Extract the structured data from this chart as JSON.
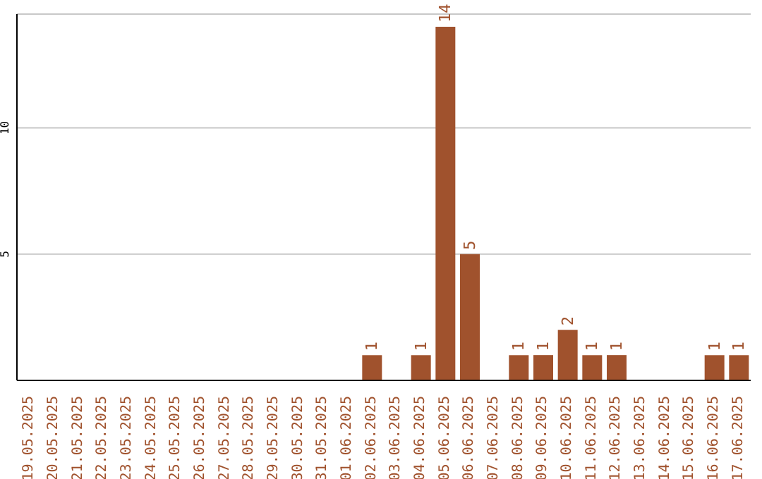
{
  "chart_data": {
    "type": "bar",
    "categories": [
      "19.05.2025",
      "20.05.2025",
      "21.05.2025",
      "22.05.2025",
      "23.05.2025",
      "24.05.2025",
      "25.05.2025",
      "26.05.2025",
      "27.05.2025",
      "28.05.2025",
      "29.05.2025",
      "30.05.2025",
      "31.05.2025",
      "01.06.2025",
      "02.06.2025",
      "03.06.2025",
      "04.06.2025",
      "05.06.2025",
      "06.06.2025",
      "07.06.2025",
      "08.06.2025",
      "09.06.2025",
      "10.06.2025",
      "11.06.2025",
      "12.06.2025",
      "13.06.2025",
      "14.06.2025",
      "15.06.2025",
      "16.06.2025",
      "17.06.2025"
    ],
    "values": [
      0,
      0,
      0,
      0,
      0,
      0,
      0,
      0,
      0,
      0,
      0,
      0,
      0,
      0,
      1,
      0,
      1,
      14,
      5,
      0,
      1,
      1,
      2,
      1,
      1,
      0,
      0,
      0,
      1,
      1
    ],
    "value_labels": [
      null,
      null,
      null,
      null,
      null,
      null,
      null,
      null,
      null,
      null,
      null,
      null,
      null,
      null,
      "1",
      null,
      "1",
      "14",
      "5",
      null,
      "1",
      "1",
      "2",
      "1",
      "1",
      null,
      null,
      null,
      "1",
      "1"
    ],
    "color": "#a0522d",
    "ylim": [
      0,
      14.5
    ],
    "yticks": [
      5,
      10
    ],
    "grid": "y"
  }
}
